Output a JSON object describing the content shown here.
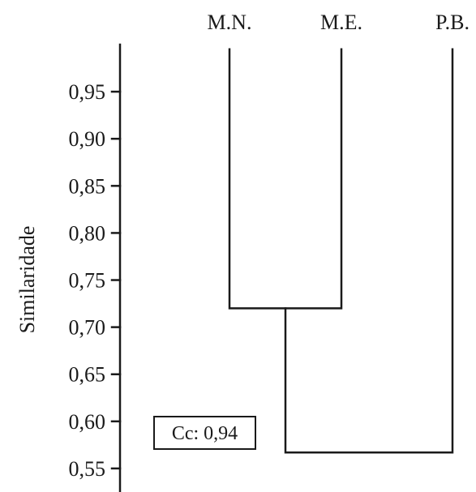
{
  "chart_data": {
    "type": "dendrogram",
    "leaves": [
      "M.N.",
      "M.E.",
      "P.B."
    ],
    "merges": [
      {
        "left": "M.N.",
        "right": "M.E.",
        "similarity": 0.72
      },
      {
        "left": "M.N.+M.E.",
        "right": "P.B.",
        "similarity": 0.567
      }
    ],
    "ylabel": "Similaridade",
    "yticks": [
      "0,95",
      "0,90",
      "0,85",
      "0,80",
      "0,75",
      "0,70",
      "0,65",
      "0,60",
      "0,55"
    ],
    "ytick_values": [
      0.95,
      0.9,
      0.85,
      0.8,
      0.75,
      0.7,
      0.65,
      0.6,
      0.55
    ],
    "ylim": [
      0.525,
      1.0
    ],
    "leaf_top_similarity": 0.995,
    "annotation": "Cc: 0,94",
    "grid": false
  }
}
